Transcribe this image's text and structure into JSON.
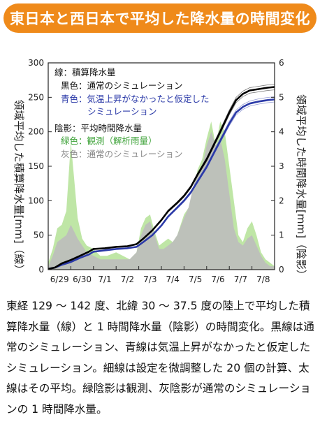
{
  "title": "東日本と西日本で平均した降水量の時間変化",
  "caption": "東経 129 〜 142 度、北緯 30 〜 37.5 度の陸上で平均した積算降水量（線）と 1 時間降水量（陰影）の時間変化。黒線は通常のシミュレーション、青線は気温上昇がなかったと仮定したシミュレーション。細線は設定を微調整した 20 個の計算、太線はその平均。緑陰影は観測、灰陰影が通常のシミュレーションの 1 時間降水量。",
  "colors": {
    "banner": "#ef8a1a",
    "black_line": "#000000",
    "blue_line": "#2b3aa8",
    "green_shade": "#bfe6a6",
    "gray_shade": "#bdbdbd",
    "green_text": "#3fa33a",
    "gray_text": "#8a8a8a"
  },
  "legend": {
    "lines_header": "線：積算降水量",
    "black": "黒色：通常のシミュレーション",
    "blue_1": "青色：気温上昇がなかったと仮定した",
    "blue_2": "シミュレーション",
    "shade_header": "陰影：平均時間降水量",
    "green": "緑色：観測（解析雨量）",
    "gray": "灰色：通常のシミュレーション"
  },
  "chart_data": {
    "type": "line",
    "xlabel": "",
    "ylabel": "領域平均した積算降水量[mm]（線）",
    "y2label": "領域平均した時間降水量[mm]（陰影）",
    "ylim": [
      0,
      300
    ],
    "y2lim": [
      0,
      6
    ],
    "yticks": [
      0,
      50,
      100,
      150,
      200,
      250,
      300
    ],
    "y2ticks": [
      0,
      1,
      2,
      3,
      4,
      5,
      6
    ],
    "xlim": [
      0,
      10
    ],
    "x_categories": [
      "6/29",
      "6/30",
      "7/1",
      "7/2",
      "7/3",
      "7/4",
      "7/5",
      "7/6",
      "7/7",
      "7/8"
    ],
    "cumulative_series": [
      {
        "name": "通常のシミュレーション",
        "x": [
          0,
          0.3,
          0.6,
          1,
          1.4,
          1.8,
          2,
          2.5,
          3,
          3.5,
          3.9,
          4.2,
          4.6,
          5,
          5.3,
          5.7,
          6,
          6.3,
          6.6,
          7,
          7.3,
          7.6,
          8,
          8.3,
          8.6,
          8.9,
          9.3,
          9.7,
          10
        ],
        "values": [
          1,
          3,
          9,
          14,
          20,
          26,
          30,
          31,
          33,
          34,
          37,
          45,
          57,
          72,
          85,
          97,
          107,
          120,
          138,
          160,
          180,
          200,
          228,
          246,
          255,
          260,
          262,
          264,
          265
        ]
      },
      {
        "name": "気温上昇がなかったと仮定したシミュレーション",
        "x": [
          0,
          0.3,
          0.6,
          1,
          1.4,
          1.8,
          2,
          2.5,
          3,
          3.5,
          3.9,
          4.2,
          4.6,
          5,
          5.3,
          5.7,
          6,
          6.3,
          6.6,
          7,
          7.3,
          7.6,
          8,
          8.3,
          8.6,
          8.9,
          9.3,
          9.7,
          10
        ],
        "values": [
          1,
          3,
          7,
          11,
          17,
          22,
          26,
          28,
          30,
          31,
          33,
          40,
          50,
          64,
          77,
          90,
          100,
          112,
          128,
          149,
          168,
          187,
          212,
          228,
          236,
          241,
          244,
          246,
          247
        ]
      }
    ],
    "hourly_series": [
      {
        "name": "観測（解析雨量）",
        "x": [
          0,
          0.2,
          0.4,
          0.6,
          0.8,
          1,
          1.15,
          1.3,
          1.5,
          1.7,
          2,
          2.3,
          2.6,
          3,
          3.3,
          3.6,
          3.9,
          4.1,
          4.3,
          4.5,
          4.7,
          4.9,
          5.1,
          5.3,
          5.5,
          5.7,
          6,
          6.2,
          6.4,
          6.6,
          6.8,
          7,
          7.2,
          7.4,
          7.6,
          7.8,
          8,
          8.2,
          8.4,
          8.6,
          8.8,
          9,
          9.2,
          9.4,
          9.6,
          9.8,
          10
        ],
        "values": [
          0.2,
          0.6,
          1.2,
          1.3,
          1.7,
          3.7,
          2.6,
          1.5,
          0.9,
          0.7,
          0.6,
          0.4,
          0.4,
          0.5,
          0.4,
          0.3,
          0.5,
          1.2,
          1.5,
          1.6,
          1.1,
          0.7,
          0.8,
          0.9,
          0.8,
          1.0,
          1.6,
          1.8,
          2.3,
          2.9,
          3.2,
          3.8,
          4.3,
          3.6,
          4.3,
          4.0,
          3.0,
          2.0,
          1.0,
          0.8,
          1.2,
          1.4,
          1.0,
          0.5,
          0.3,
          0.2,
          0.1
        ]
      },
      {
        "name": "通常のシミュレーション",
        "x": [
          0,
          0.2,
          0.4,
          0.6,
          0.8,
          1,
          1.15,
          1.3,
          1.5,
          1.7,
          2,
          2.3,
          2.6,
          3,
          3.3,
          3.6,
          3.9,
          4.1,
          4.3,
          4.5,
          4.7,
          4.9,
          5.1,
          5.3,
          5.5,
          5.7,
          6,
          6.2,
          6.4,
          6.6,
          6.8,
          7,
          7.2,
          7.4,
          7.6,
          7.8,
          8,
          8.2,
          8.4,
          8.6,
          8.8,
          9,
          9.2,
          9.4,
          9.6,
          9.8,
          10
        ],
        "values": [
          0.1,
          0.4,
          0.8,
          0.9,
          1.0,
          1.3,
          1.1,
          0.9,
          0.7,
          0.5,
          0.4,
          0.3,
          0.3,
          0.3,
          0.3,
          0.3,
          0.5,
          1.0,
          1.3,
          1.4,
          1.0,
          0.6,
          0.6,
          0.7,
          0.8,
          1.0,
          1.5,
          1.8,
          2.4,
          2.8,
          3.0,
          3.6,
          4.0,
          3.6,
          3.8,
          3.2,
          2.2,
          1.2,
          0.8,
          0.7,
          0.9,
          1.0,
          0.7,
          0.4,
          0.2,
          0.1,
          0.1
        ]
      }
    ]
  }
}
